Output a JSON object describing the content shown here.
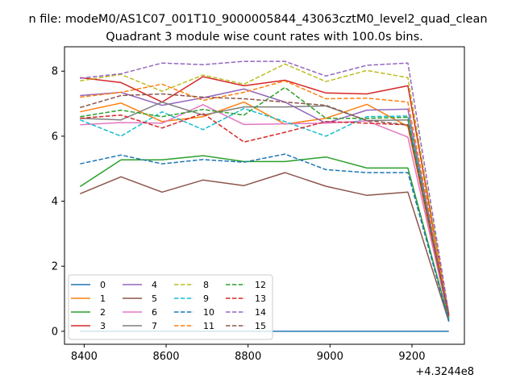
{
  "chart_data": {
    "type": "line",
    "suptitle": "n file: modeM0/AS1C07_001T10_9000005844_43063cztM0_level2_quad_clean",
    "title": "Quadrant 3 module wise count rates with 100.0s bins.",
    "xlabel": "",
    "ylabel": "",
    "x_offset_label": "+4.3244e8",
    "x": [
      8390,
      8490,
      8590,
      8690,
      8790,
      8890,
      8990,
      9090,
      9190,
      9290
    ],
    "xlim": [
      8352,
      9328
    ],
    "ylim": [
      -0.4,
      8.75
    ],
    "x_ticks": [
      8400,
      8600,
      8800,
      9000,
      9200
    ],
    "y_ticks": [
      0,
      2,
      4,
      6,
      8
    ],
    "x_tick_labels": [
      "8400",
      "8600",
      "8800",
      "9000",
      "9200"
    ],
    "y_tick_labels": [
      "0",
      "2",
      "4",
      "6",
      "8"
    ],
    "legend_position": "lower left",
    "series": [
      {
        "name": "0",
        "color": "#1f77b4",
        "dash": "solid",
        "values": [
          0,
          0,
          0,
          0,
          0,
          0,
          0,
          0,
          0,
          0
        ]
      },
      {
        "name": "1",
        "color": "#ff7f0e",
        "dash": "solid",
        "values": [
          6.75,
          7.02,
          6.45,
          6.6,
          7.05,
          6.37,
          6.55,
          6.98,
          6.3,
          0.4
        ]
      },
      {
        "name": "2",
        "color": "#2ca02c",
        "dash": "solid",
        "values": [
          4.45,
          5.27,
          5.27,
          5.4,
          5.22,
          5.22,
          5.36,
          5.02,
          5.02,
          0.35
        ]
      },
      {
        "name": "3",
        "color": "#d62728",
        "dash": "solid",
        "values": [
          7.8,
          7.65,
          7.05,
          7.83,
          7.55,
          7.72,
          7.33,
          7.3,
          7.55,
          0.5
        ]
      },
      {
        "name": "4",
        "color": "#9467bd",
        "dash": "solid",
        "values": [
          7.25,
          7.35,
          6.95,
          7.18,
          7.45,
          7.05,
          6.4,
          6.8,
          6.83,
          0.45
        ]
      },
      {
        "name": "5",
        "color": "#8c564b",
        "dash": "solid",
        "values": [
          4.23,
          4.75,
          4.28,
          4.65,
          4.48,
          4.88,
          4.46,
          4.18,
          4.28,
          0.3
        ]
      },
      {
        "name": "6",
        "color": "#e377c2",
        "dash": "solid",
        "values": [
          6.35,
          6.42,
          6.4,
          6.97,
          6.36,
          6.38,
          6.4,
          6.47,
          5.97,
          0.4
        ]
      },
      {
        "name": "7",
        "color": "#7f7f7f",
        "dash": "solid",
        "values": [
          6.55,
          6.5,
          7.05,
          6.65,
          6.9,
          6.9,
          6.93,
          6.48,
          6.5,
          0.45
        ]
      },
      {
        "name": "8",
        "color": "#bcbd22",
        "dash": "dashed",
        "values": [
          7.7,
          7.9,
          7.38,
          7.88,
          7.6,
          8.22,
          7.68,
          8.02,
          7.8,
          0.5
        ]
      },
      {
        "name": "9",
        "color": "#17becf",
        "dash": "dashed",
        "values": [
          6.5,
          6.0,
          6.75,
          6.2,
          6.85,
          6.45,
          6.0,
          6.6,
          6.62,
          0.4
        ]
      },
      {
        "name": "10",
        "color": "#1f77b4",
        "dash": "dashed",
        "values": [
          5.15,
          5.42,
          5.15,
          5.28,
          5.2,
          5.45,
          4.97,
          4.88,
          4.88,
          0.3
        ]
      },
      {
        "name": "11",
        "color": "#ff7f0e",
        "dash": "dashed",
        "values": [
          7.2,
          7.35,
          7.6,
          7.1,
          7.35,
          7.7,
          7.15,
          7.17,
          7.05,
          0.55
        ]
      },
      {
        "name": "12",
        "color": "#2ca02c",
        "dash": "dashed",
        "values": [
          6.6,
          6.8,
          6.6,
          6.82,
          6.65,
          7.5,
          6.55,
          6.55,
          6.58,
          0.4
        ]
      },
      {
        "name": "13",
        "color": "#d62728",
        "dash": "dashed",
        "values": [
          6.55,
          6.65,
          6.25,
          6.7,
          5.82,
          6.12,
          6.45,
          6.4,
          6.35,
          0.45
        ]
      },
      {
        "name": "14",
        "color": "#9467bd",
        "dash": "dashed",
        "values": [
          7.78,
          7.92,
          8.25,
          8.2,
          8.3,
          8.3,
          7.85,
          8.18,
          8.25,
          0.55
        ]
      },
      {
        "name": "15",
        "color": "#8c564b",
        "dash": "dashed",
        "values": [
          6.88,
          7.25,
          7.3,
          7.2,
          7.15,
          7.05,
          6.95,
          6.48,
          6.35,
          0.5
        ]
      }
    ]
  }
}
